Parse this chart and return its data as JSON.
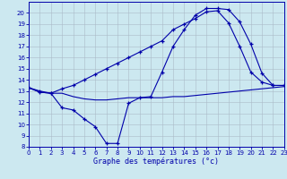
{
  "title": "Graphe des températures (°c)",
  "background_color": "#cce8f0",
  "line_color": "#0000aa",
  "ylim": [
    8,
    21
  ],
  "xlim": [
    0,
    23
  ],
  "yticks": [
    8,
    9,
    10,
    11,
    12,
    13,
    14,
    15,
    16,
    17,
    18,
    19,
    20
  ],
  "xticks": [
    0,
    1,
    2,
    3,
    4,
    5,
    6,
    7,
    8,
    9,
    10,
    11,
    12,
    13,
    14,
    15,
    16,
    17,
    18,
    19,
    20,
    21,
    22,
    23
  ],
  "series": [
    {
      "markers": false,
      "x": [
        0,
        1,
        2,
        3,
        4,
        5,
        6,
        7,
        8,
        9,
        10,
        11,
        12,
        13,
        14,
        15,
        16,
        17,
        18,
        19,
        20,
        21,
        22,
        23
      ],
      "y": [
        13.3,
        12.9,
        12.8,
        12.8,
        12.5,
        12.3,
        12.2,
        12.2,
        12.3,
        12.4,
        12.4,
        12.4,
        12.4,
        12.5,
        12.5,
        12.6,
        12.7,
        12.8,
        12.9,
        13.0,
        13.1,
        13.2,
        13.3,
        13.4
      ]
    },
    {
      "markers": true,
      "x": [
        0,
        1,
        2,
        3,
        4,
        5,
        6,
        7,
        8,
        9,
        10,
        11,
        12,
        13,
        14,
        15,
        16,
        17,
        18,
        19,
        20,
        21,
        22,
        23
      ],
      "y": [
        13.3,
        12.9,
        12.8,
        11.5,
        11.3,
        10.5,
        9.8,
        8.3,
        8.3,
        11.9,
        12.4,
        12.5,
        14.7,
        17.0,
        18.5,
        19.8,
        20.4,
        20.4,
        20.3,
        19.2,
        17.2,
        14.6,
        13.5,
        13.5
      ]
    },
    {
      "markers": true,
      "x": [
        0,
        1,
        2,
        3,
        4,
        5,
        6,
        7,
        8,
        9,
        10,
        11,
        12,
        13,
        14,
        15,
        16,
        17,
        18,
        19,
        20,
        21,
        22,
        23
      ],
      "y": [
        13.3,
        13.0,
        12.8,
        13.2,
        13.5,
        14.0,
        14.5,
        15.0,
        15.5,
        16.0,
        16.5,
        17.0,
        17.5,
        18.5,
        19.0,
        19.5,
        20.1,
        20.2,
        19.1,
        17.0,
        14.7,
        13.8,
        13.5,
        13.5
      ]
    }
  ]
}
